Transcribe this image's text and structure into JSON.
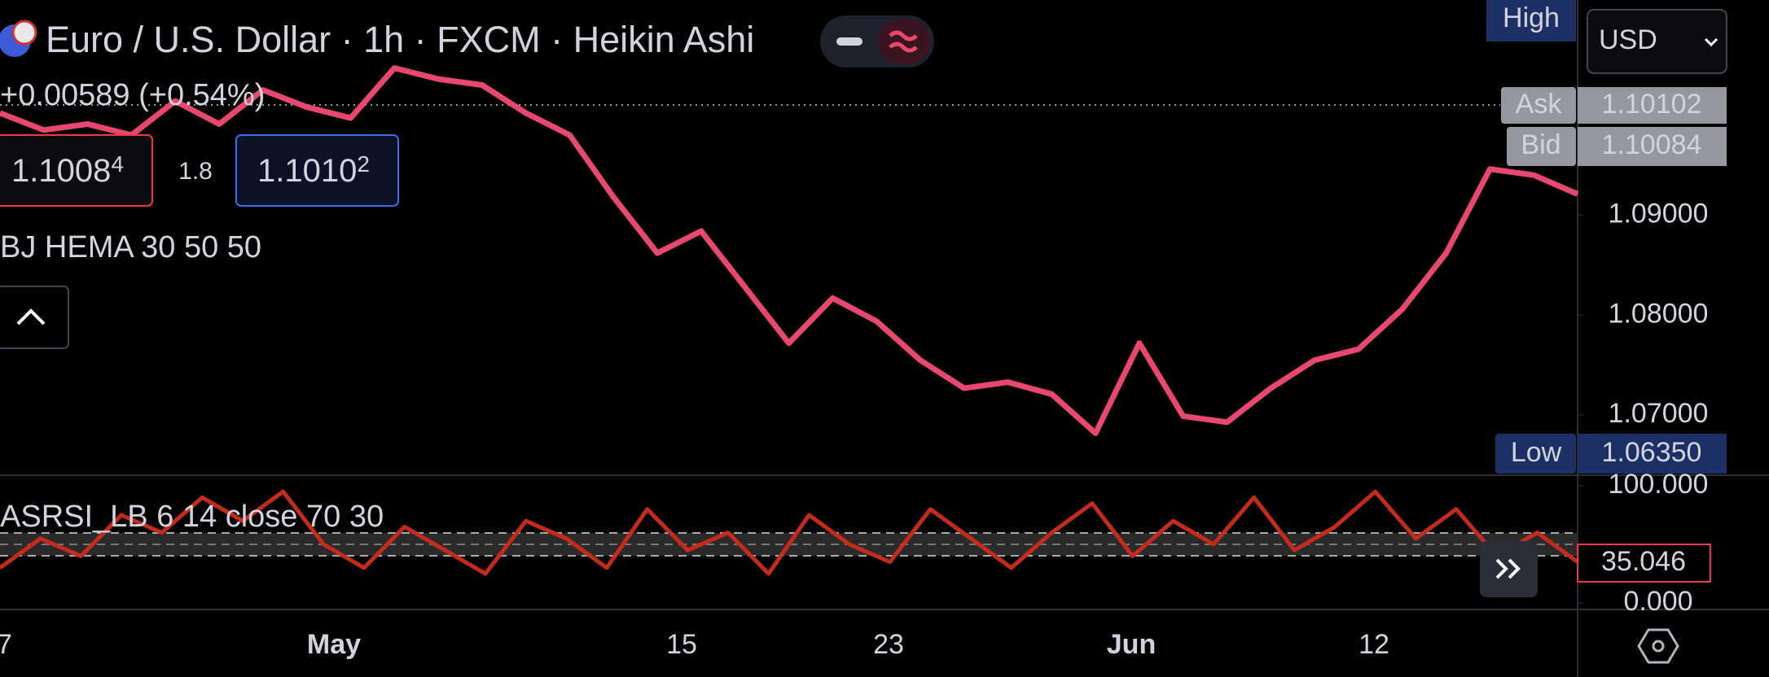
{
  "header": {
    "title": "Euro / U.S. Dollar · 1h · FXCM · Heikin Ashi",
    "change": "+0.00589 (+0.54%)"
  },
  "order": {
    "sell_main": "1.1008",
    "sell_small": "4",
    "spread": "1.8",
    "buy_main": "1.1010",
    "buy_small": "2"
  },
  "indicator_1": "BJ HEMA 30 50 50",
  "indicator_2": "ASRSI_LB 6 14 close 70 30",
  "toolbar": {
    "high": "High",
    "currency": "USD"
  },
  "quotes": {
    "ask_label": "Ask",
    "ask": "1.10102",
    "bid_label": "Bid",
    "bid": "1.10084",
    "low_label": "Low",
    "low": "1.06350",
    "rsi_last": "35.046"
  },
  "time_labels": [
    "7",
    "May",
    "15",
    "23",
    "Jun",
    "12"
  ],
  "chart_data": [
    {
      "type": "line",
      "color": "#e8476f",
      "values": [
        1.1002,
        1.0985,
        1.0991,
        1.098,
        1.1014,
        1.0991,
        1.1025,
        1.1008,
        1.0997,
        1.1047,
        1.1036,
        1.103,
        1.1002,
        1.098,
        1.0918,
        1.0862,
        1.0884,
        1.0828,
        1.0772,
        1.0817,
        1.0794,
        1.0755,
        1.0727,
        1.0733,
        1.0721,
        1.0682,
        1.0772,
        1.0699,
        1.0693,
        1.0727,
        1.0755,
        1.0766,
        1.0806,
        1.0862,
        1.0946,
        1.094,
        1.0921
      ],
      "ylim": [
        1.064,
        1.1115
      ],
      "yticks": [
        {
          "value": 1.09,
          "label": "1.09000"
        },
        {
          "value": 1.08,
          "label": "1.08000"
        },
        {
          "value": 1.07,
          "label": "1.07000"
        }
      ]
    },
    {
      "type": "line",
      "color": "#c62a1c",
      "values": [
        30,
        55,
        40,
        75,
        60,
        90,
        70,
        95,
        50,
        30,
        65,
        45,
        25,
        70,
        55,
        30,
        80,
        45,
        60,
        25,
        75,
        50,
        35,
        80,
        55,
        30,
        60,
        85,
        40,
        70,
        50,
        90,
        45,
        65,
        95,
        55,
        80,
        40,
        60,
        35.046
      ],
      "ylim": [
        0,
        100
      ],
      "yticks": [
        {
          "value": 100,
          "label": "100.000"
        },
        {
          "value": 0,
          "label": "0.000"
        }
      ]
    }
  ]
}
